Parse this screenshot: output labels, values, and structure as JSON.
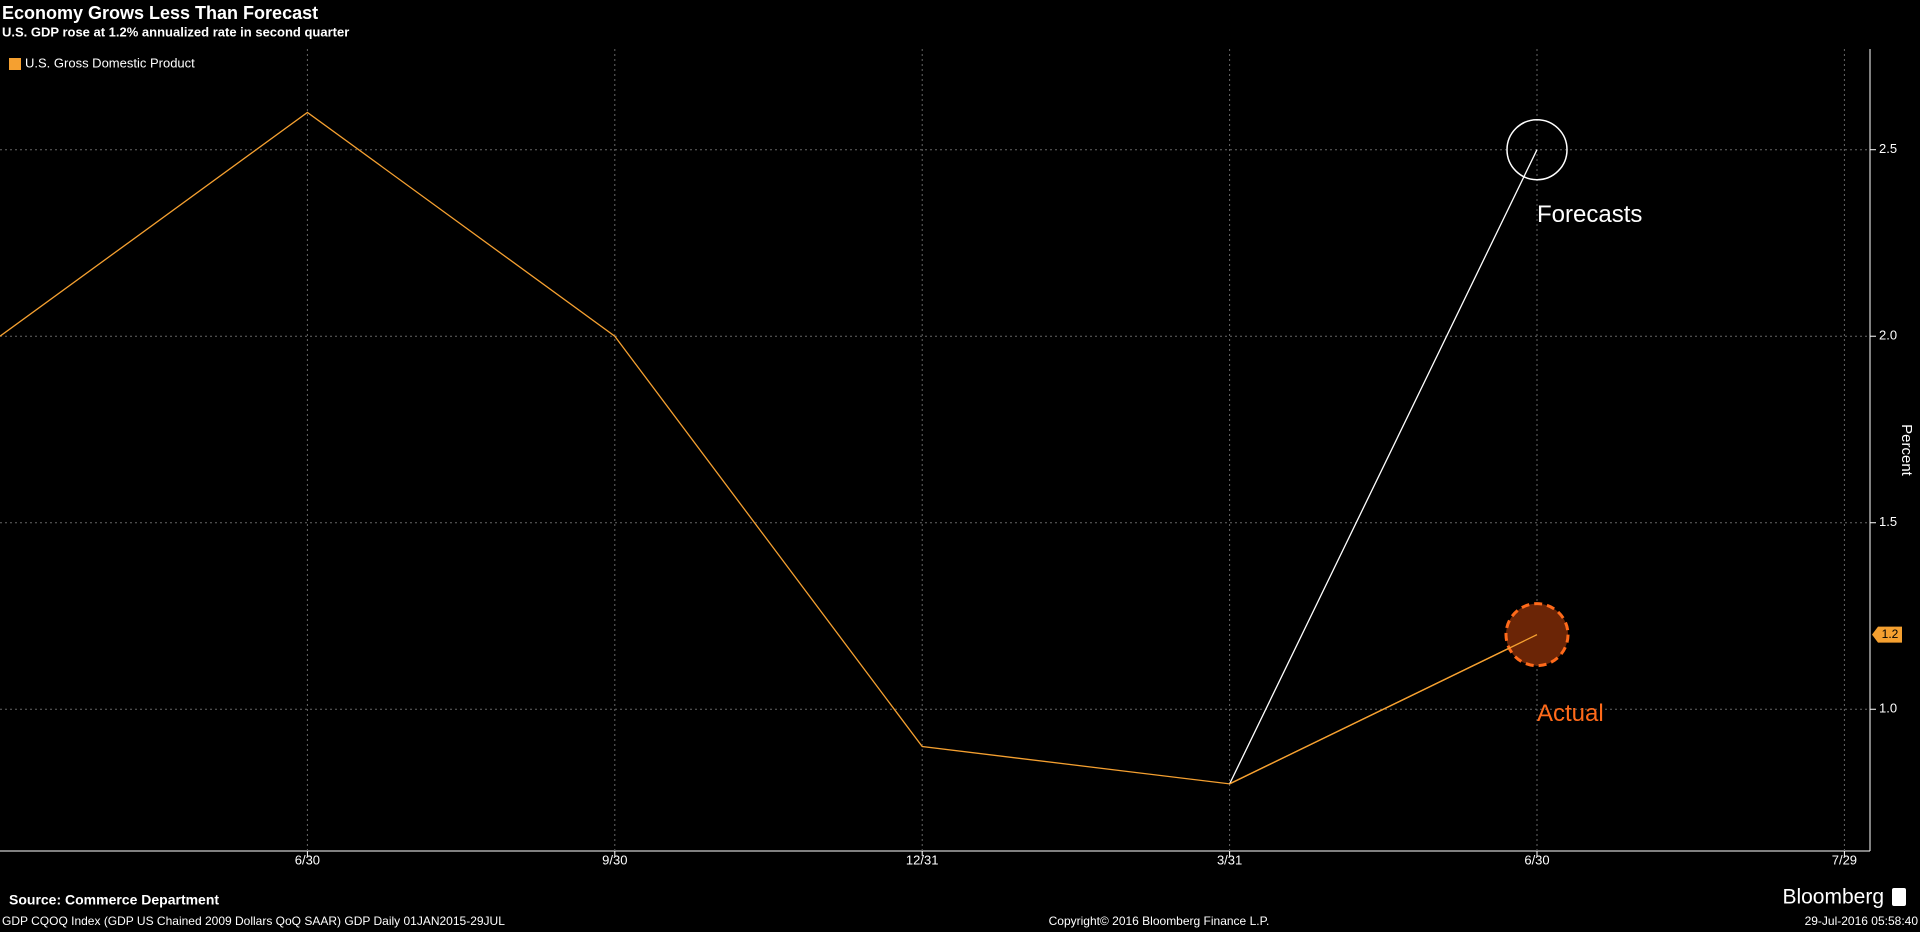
{
  "chart_data": {
    "type": "line",
    "title": "Economy Grows Less Than Forecast",
    "subtitle": "U.S. GDP rose at 1.2% annualized rate in second quarter",
    "y_label": "Percent",
    "categories": [
      null,
      "6/30",
      "9/30",
      "12/31",
      "3/31",
      "6/30",
      "7/29"
    ],
    "series": [
      {
        "name": "U.S. Gross Domestic Product",
        "color": "#f5a030",
        "values": [
          2.0,
          2.6,
          2.0,
          0.9,
          0.8,
          1.2,
          null
        ]
      },
      {
        "color": "#ffffff",
        "values": [
          null,
          null,
          null,
          null,
          0.8,
          2.5,
          null
        ]
      }
    ],
    "annotations": [
      {
        "text": "Forecasts",
        "color": "#ffffff"
      },
      {
        "text": "Actual",
        "color": "#ff6a1a"
      }
    ],
    "ylim": [
      0.62,
      2.77
    ],
    "yticks": [
      {
        "value": 1,
        "label": "1.0"
      },
      1.5,
      {
        "value": 2,
        "label": "2.0"
      },
      2.5
    ],
    "grid": true,
    "legend": "top-left",
    "source": "Source: Commerce Department",
    "footer_left": "GDP CQOQ Index (GDP US Chained 2009 Dollars QoQ SAAR) GDP  Daily 01JAN2015-29JUL",
    "footer_center": "Copyright© 2016 Bloomberg Finance L.P.",
    "brand": "Bloomberg",
    "timestamp": "29-Jul-2016 05:58:40"
  }
}
